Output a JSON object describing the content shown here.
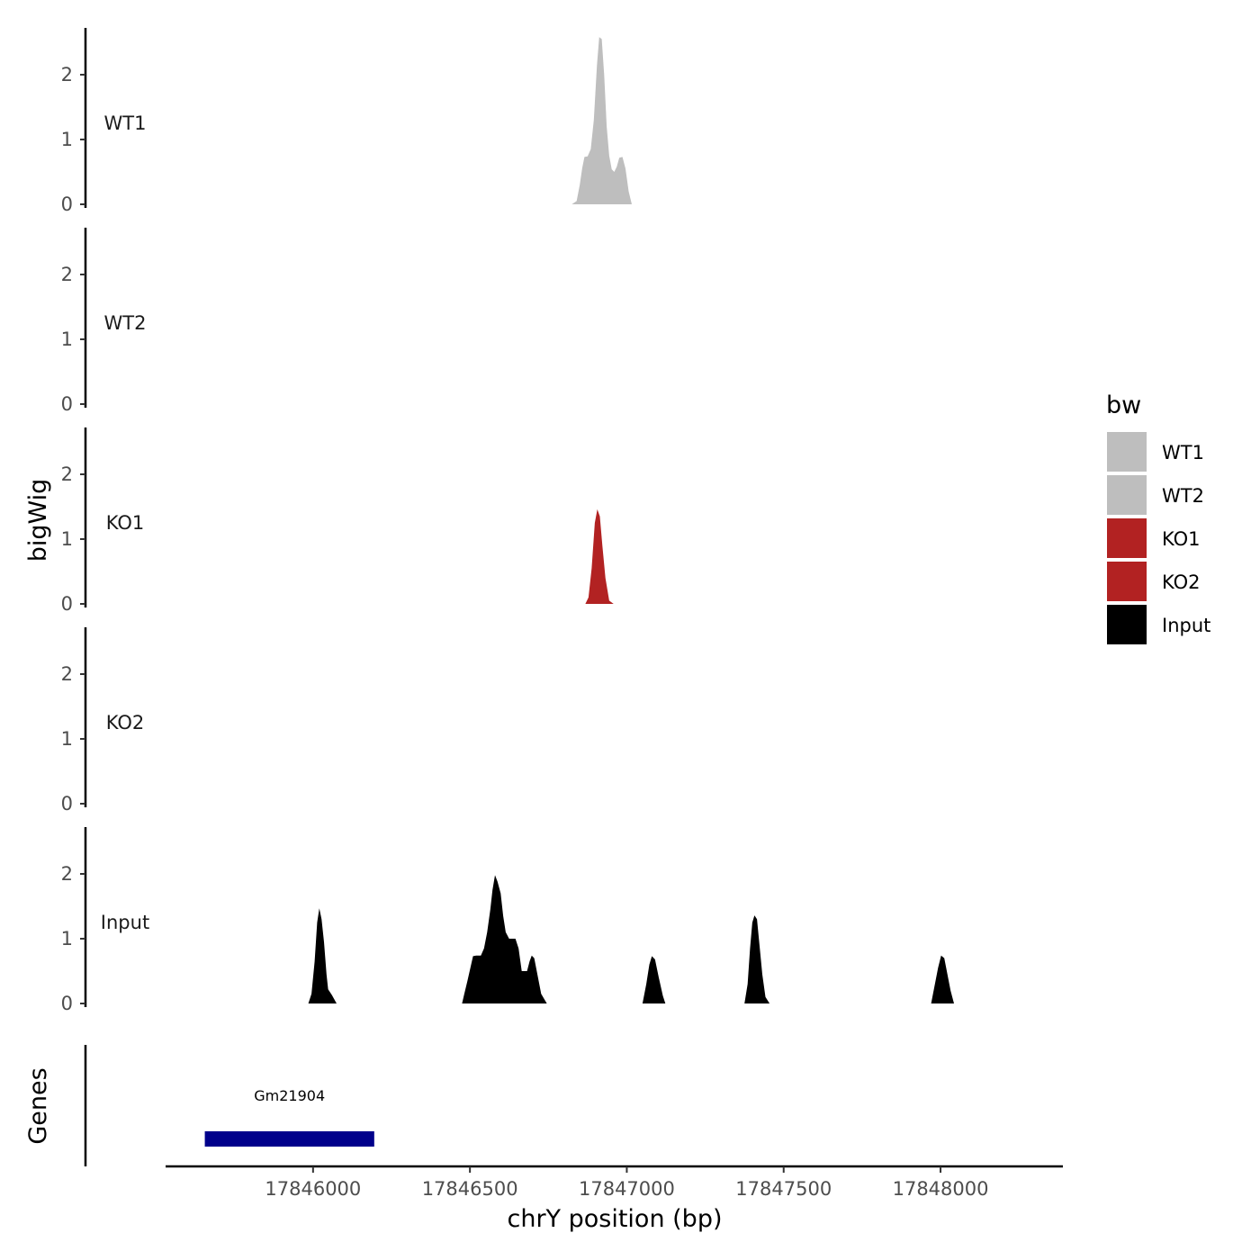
{
  "chart_data": {
    "type": "area",
    "ylabel": "bigWig",
    "xlabel": "chrY position (bp)",
    "genes_label": "Genes",
    "xlim": [
      17845530,
      17848390
    ],
    "ylim": [
      0,
      2.65
    ],
    "x_ticks": [
      17846000,
      17846500,
      17847000,
      17847500,
      17848000
    ],
    "y_ticks": [
      0,
      1,
      2
    ],
    "legend": {
      "title": "bw",
      "position": "right",
      "entries": [
        {
          "name": "WT1",
          "color": "#bebebe"
        },
        {
          "name": "WT2",
          "color": "#bebebe"
        },
        {
          "name": "KO1",
          "color": "#b22222"
        },
        {
          "name": "KO2",
          "color": "#b22222"
        },
        {
          "name": "Input",
          "color": "#000000"
        }
      ]
    },
    "series": [
      {
        "name": "WT1",
        "color": "#bebebe",
        "points": [
          [
            17846825,
            0
          ],
          [
            17846840,
            0.05
          ],
          [
            17846850,
            0.3
          ],
          [
            17846858,
            0.56
          ],
          [
            17846865,
            0.73
          ],
          [
            17846875,
            0.74
          ],
          [
            17846885,
            0.85
          ],
          [
            17846895,
            1.3
          ],
          [
            17846905,
            2.15
          ],
          [
            17846912,
            2.58
          ],
          [
            17846920,
            2.55
          ],
          [
            17846928,
            2.0
          ],
          [
            17846936,
            1.2
          ],
          [
            17846944,
            0.75
          ],
          [
            17846952,
            0.54
          ],
          [
            17846960,
            0.5
          ],
          [
            17846968,
            0.58
          ],
          [
            17846976,
            0.72
          ],
          [
            17846986,
            0.73
          ],
          [
            17846996,
            0.55
          ],
          [
            17847006,
            0.2
          ],
          [
            17847016,
            0
          ]
        ]
      },
      {
        "name": "WT2",
        "color": "#bebebe",
        "points": []
      },
      {
        "name": "KO1",
        "color": "#b22222",
        "points": [
          [
            17846868,
            0
          ],
          [
            17846878,
            0.1
          ],
          [
            17846888,
            0.55
          ],
          [
            17846898,
            1.25
          ],
          [
            17846906,
            1.46
          ],
          [
            17846914,
            1.35
          ],
          [
            17846922,
            0.9
          ],
          [
            17846932,
            0.4
          ],
          [
            17846944,
            0.05
          ],
          [
            17846958,
            0
          ]
        ]
      },
      {
        "name": "KO2",
        "color": "#b22222",
        "points": []
      },
      {
        "name": "Input",
        "color": "#000000",
        "points": [
          [
            17845985,
            0
          ],
          [
            17845995,
            0.15
          ],
          [
            17846005,
            0.65
          ],
          [
            17846013,
            1.25
          ],
          [
            17846020,
            1.47
          ],
          [
            17846027,
            1.3
          ],
          [
            17846035,
            0.95
          ],
          [
            17846043,
            0.45
          ],
          [
            17846048,
            0.22
          ],
          [
            17846060,
            0.13
          ],
          [
            17846075,
            0
          ],
          [
            17846475,
            0
          ],
          [
            17846482,
            0.15
          ],
          [
            17846492,
            0.35
          ],
          [
            17846502,
            0.56
          ],
          [
            17846510,
            0.73
          ],
          [
            17846520,
            0.74
          ],
          [
            17846535,
            0.74
          ],
          [
            17846545,
            0.85
          ],
          [
            17846555,
            1.1
          ],
          [
            17846565,
            1.45
          ],
          [
            17846572,
            1.75
          ],
          [
            17846580,
            1.98
          ],
          [
            17846588,
            1.88
          ],
          [
            17846598,
            1.7
          ],
          [
            17846606,
            1.35
          ],
          [
            17846614,
            1.1
          ],
          [
            17846625,
            1.0
          ],
          [
            17846645,
            1.0
          ],
          [
            17846655,
            0.85
          ],
          [
            17846665,
            0.5
          ],
          [
            17846675,
            0.5
          ],
          [
            17846682,
            0.5
          ],
          [
            17846690,
            0.65
          ],
          [
            17846697,
            0.74
          ],
          [
            17846705,
            0.7
          ],
          [
            17846715,
            0.45
          ],
          [
            17846727,
            0.15
          ],
          [
            17846745,
            0
          ],
          [
            17847050,
            0
          ],
          [
            17847062,
            0.3
          ],
          [
            17847072,
            0.6
          ],
          [
            17847080,
            0.73
          ],
          [
            17847090,
            0.68
          ],
          [
            17847102,
            0.4
          ],
          [
            17847115,
            0.12
          ],
          [
            17847123,
            0
          ],
          [
            17847375,
            0
          ],
          [
            17847385,
            0.3
          ],
          [
            17847393,
            0.85
          ],
          [
            17847400,
            1.25
          ],
          [
            17847407,
            1.36
          ],
          [
            17847415,
            1.3
          ],
          [
            17847423,
            0.9
          ],
          [
            17847432,
            0.45
          ],
          [
            17847442,
            0.1
          ],
          [
            17847455,
            0
          ],
          [
            17847970,
            0
          ],
          [
            17847982,
            0.3
          ],
          [
            17847992,
            0.55
          ],
          [
            17848002,
            0.74
          ],
          [
            17848012,
            0.7
          ],
          [
            17848022,
            0.45
          ],
          [
            17848032,
            0.2
          ],
          [
            17848043,
            0
          ]
        ]
      }
    ],
    "genes": [
      {
        "name": "Gm21904",
        "start": 17845655,
        "end": 17846195,
        "color": "#00008b"
      }
    ]
  }
}
